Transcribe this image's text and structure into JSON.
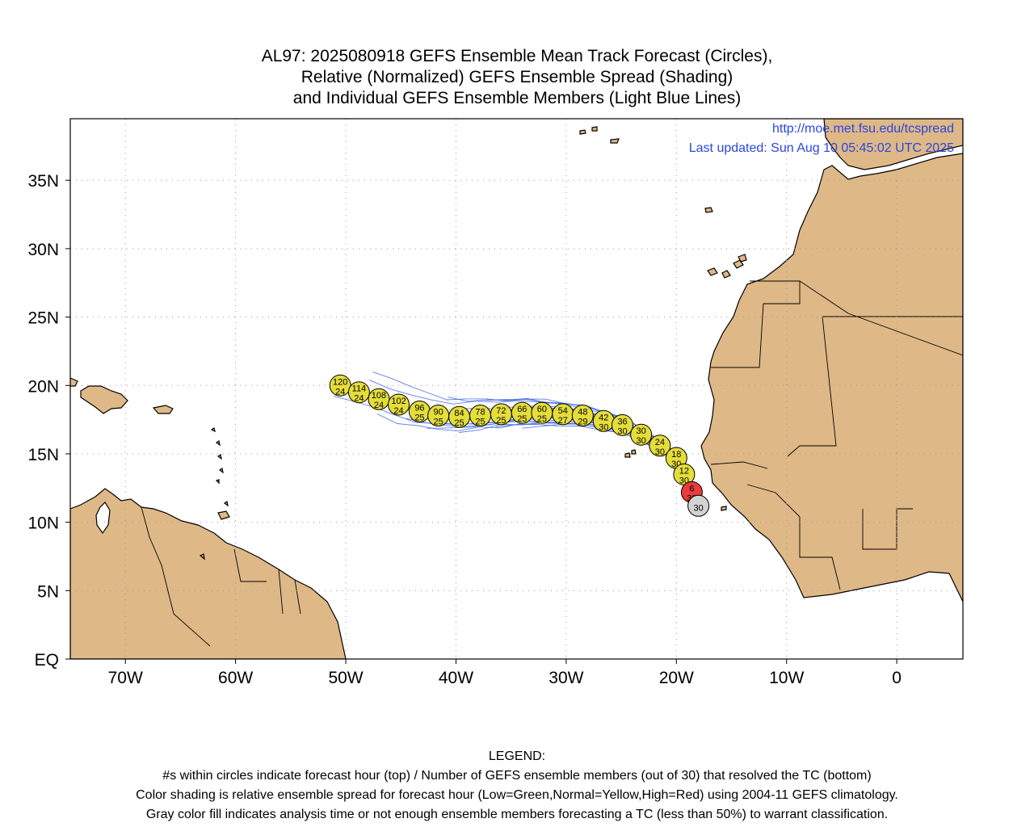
{
  "title": {
    "line1": "AL97: 2025080918 GEFS Ensemble Mean Track Forecast (Circles),",
    "line2": "Relative (Normalized) GEFS Ensemble Spread (Shading)",
    "line3": "and Individual GEFS Ensemble Members (Light Blue Lines)"
  },
  "credit": {
    "url": "http://moe.met.fsu.edu/tcspread",
    "updated": "Last updated: Sun Aug 10 05:45:02 UTC 2025"
  },
  "axes": {
    "lon_labels": [
      "70W",
      "60W",
      "50W",
      "40W",
      "30W",
      "20W",
      "10W",
      "0"
    ],
    "lon_values": [
      -70,
      -60,
      -50,
      -40,
      -30,
      -20,
      -10,
      0
    ],
    "lat_labels": [
      "EQ",
      "5N",
      "10N",
      "15N",
      "20N",
      "25N",
      "30N",
      "35N"
    ],
    "lat_values": [
      0,
      5,
      10,
      15,
      20,
      25,
      30,
      35
    ],
    "lon_range": [
      -75,
      6
    ],
    "lat_range": [
      0,
      39.5
    ]
  },
  "colors": {
    "land": "#deb887",
    "track_member": "#4169e1",
    "circle_normal": "#e5dd3a",
    "circle_high": "#e83b3b",
    "circle_gray": "#d3d3d3",
    "credit_text": "#2a47e0"
  },
  "track": [
    {
      "hour": "0",
      "members": "30",
      "lon": -18.0,
      "lat": 11.2,
      "color": "gray"
    },
    {
      "hour": "6",
      "members": "30",
      "lon": -18.6,
      "lat": 12.2,
      "color": "red"
    },
    {
      "hour": "12",
      "members": "30",
      "lon": -19.3,
      "lat": 13.5,
      "color": "yellow"
    },
    {
      "hour": "18",
      "members": "30",
      "lon": -20.0,
      "lat": 14.7,
      "color": "yellow"
    },
    {
      "hour": "24",
      "members": "30",
      "lon": -21.5,
      "lat": 15.6,
      "color": "yellow"
    },
    {
      "hour": "30",
      "members": "30",
      "lon": -23.2,
      "lat": 16.4,
      "color": "yellow"
    },
    {
      "hour": "36",
      "members": "30",
      "lon": -24.9,
      "lat": 17.1,
      "color": "yellow"
    },
    {
      "hour": "42",
      "members": "30",
      "lon": -26.6,
      "lat": 17.4,
      "color": "yellow"
    },
    {
      "hour": "48",
      "members": "29",
      "lon": -28.5,
      "lat": 17.8,
      "color": "yellow"
    },
    {
      "hour": "54",
      "members": "27",
      "lon": -30.3,
      "lat": 17.9,
      "color": "yellow"
    },
    {
      "hour": "60",
      "members": "25",
      "lon": -32.2,
      "lat": 18.0,
      "color": "yellow"
    },
    {
      "hour": "66",
      "members": "25",
      "lon": -34.0,
      "lat": 18.0,
      "color": "yellow"
    },
    {
      "hour": "72",
      "members": "25",
      "lon": -35.9,
      "lat": 17.9,
      "color": "yellow"
    },
    {
      "hour": "78",
      "members": "25",
      "lon": -37.8,
      "lat": 17.8,
      "color": "yellow"
    },
    {
      "hour": "84",
      "members": "25",
      "lon": -39.7,
      "lat": 17.7,
      "color": "yellow"
    },
    {
      "hour": "90",
      "members": "25",
      "lon": -41.6,
      "lat": 17.8,
      "color": "yellow"
    },
    {
      "hour": "96",
      "members": "25",
      "lon": -43.3,
      "lat": 18.1,
      "color": "yellow"
    },
    {
      "hour": "102",
      "members": "24",
      "lon": -45.2,
      "lat": 18.6,
      "color": "yellow"
    },
    {
      "hour": "108",
      "members": "24",
      "lon": -47.0,
      "lat": 19.0,
      "color": "yellow"
    },
    {
      "hour": "114",
      "members": "24",
      "lon": -48.8,
      "lat": 19.5,
      "color": "yellow"
    },
    {
      "hour": "120",
      "members": "24",
      "lon": -50.5,
      "lat": 20.0,
      "color": "yellow"
    }
  ],
  "legend": {
    "heading": "LEGEND:",
    "line1": "#s within circles indicate forecast hour (top) / Number of GEFS ensemble members (out of 30) that resolved the TC (bottom)",
    "line2": "Color shading is relative ensemble spread for forecast hour (Low=Green,Normal=Yellow,High=Red) using 2004-11 GEFS climatology.",
    "line3": "Gray color fill indicates analysis time or not enough ensemble members forecasting a TC (less than 50%) to warrant classification."
  }
}
